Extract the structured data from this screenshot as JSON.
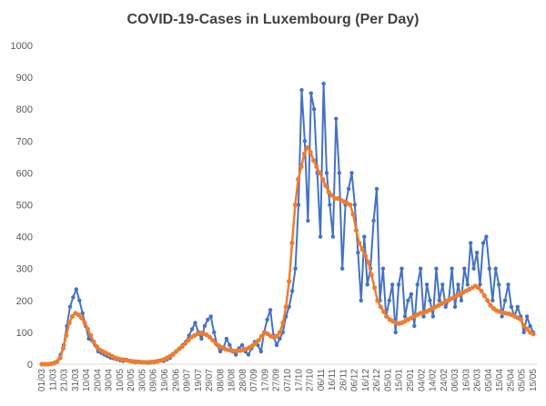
{
  "chart_data": {
    "type": "line",
    "title": "COVID-19-Cases in Luxembourg (Per Day)",
    "xlabel": "",
    "ylabel": "",
    "ylim": [
      0,
      1000
    ],
    "yticks": [
      0,
      100,
      200,
      300,
      400,
      500,
      600,
      700,
      800,
      900,
      1000
    ],
    "grid": false,
    "legend": "none",
    "x_start": "01/03",
    "x_end": "15/05",
    "x_tick_labels": [
      "01/03",
      "11/03",
      "21/03",
      "31/03",
      "10/04",
      "20/04",
      "30/04",
      "10/05",
      "20/05",
      "30/05",
      "09/06",
      "19/06",
      "29/06",
      "09/07",
      "19/07",
      "29/07",
      "08/08",
      "18/08",
      "28/08",
      "07/09",
      "17/09",
      "27/09",
      "07/10",
      "17/10",
      "27/10",
      "06/11",
      "16/11",
      "26/11",
      "06/12",
      "16/12",
      "26/12",
      "05/01",
      "15/01",
      "25/01",
      "04/02",
      "14/02",
      "24/02",
      "06/03",
      "16/03",
      "26/03",
      "05/04",
      "15/04",
      "25/04",
      "05/05",
      "15/05"
    ],
    "series": [
      {
        "color": "#4472C4",
        "marker": "circle",
        "values": [
          0,
          0,
          0,
          2,
          5,
          10,
          30,
          60,
          120,
          180,
          210,
          235,
          200,
          160,
          120,
          80,
          75,
          60,
          40,
          35,
          30,
          25,
          20,
          18,
          15,
          12,
          10,
          14,
          10,
          8,
          6,
          8,
          5,
          6,
          4,
          5,
          6,
          8,
          12,
          10,
          15,
          20,
          30,
          40,
          50,
          60,
          70,
          90,
          110,
          130,
          100,
          80,
          120,
          140,
          150,
          100,
          60,
          40,
          50,
          80,
          60,
          40,
          30,
          50,
          60,
          40,
          30,
          50,
          70,
          60,
          40,
          100,
          140,
          170,
          90,
          60,
          80,
          100,
          150,
          180,
          230,
          300,
          500,
          860,
          700,
          450,
          850,
          800,
          600,
          400,
          880,
          600,
          500,
          400,
          770,
          600,
          300,
          500,
          550,
          600,
          500,
          350,
          200,
          400,
          250,
          300,
          450,
          550,
          200,
          300,
          150,
          200,
          250,
          100,
          250,
          300,
          150,
          200,
          220,
          120,
          250,
          300,
          150,
          250,
          200,
          150,
          300,
          200,
          250,
          180,
          200,
          300,
          180,
          250,
          200,
          300,
          250,
          380,
          300,
          350,
          250,
          380,
          400,
          300,
          200,
          300,
          250,
          150,
          200,
          250,
          180,
          150,
          180,
          150,
          100,
          150,
          120,
          100
        ]
      },
      {
        "color": "#ED7D31",
        "marker": "circle",
        "values": [
          0,
          0,
          0,
          1,
          3,
          8,
          20,
          50,
          90,
          130,
          150,
          160,
          155,
          145,
          130,
          110,
          90,
          70,
          55,
          45,
          40,
          35,
          30,
          25,
          20,
          17,
          15,
          14,
          12,
          10,
          9,
          8,
          7,
          6,
          6,
          6,
          7,
          8,
          10,
          12,
          15,
          20,
          25,
          32,
          40,
          48,
          55,
          65,
          75,
          85,
          90,
          95,
          98,
          96,
          92,
          85,
          75,
          65,
          58,
          52,
          48,
          45,
          43,
          42,
          42,
          43,
          45,
          48,
          52,
          58,
          65,
          75,
          88,
          100,
          95,
          88,
          85,
          88,
          100,
          130,
          180,
          260,
          380,
          500,
          580,
          620,
          660,
          680,
          665,
          640,
          620,
          600,
          580,
          560,
          540,
          530,
          520,
          520,
          515,
          510,
          505,
          500,
          470,
          420,
          380,
          360,
          340,
          320,
          280,
          240,
          200,
          180,
          165,
          150,
          140,
          135,
          130,
          128,
          130,
          135,
          140,
          145,
          150,
          155,
          160,
          162,
          165,
          170,
          175,
          180,
          185,
          190,
          195,
          200,
          205,
          210,
          215,
          220,
          225,
          230,
          235,
          240,
          245,
          240,
          230,
          215,
          200,
          185,
          175,
          168,
          165,
          162,
          160,
          158,
          155,
          150,
          145,
          140,
          120,
          110,
          100,
          95
        ]
      }
    ]
  }
}
